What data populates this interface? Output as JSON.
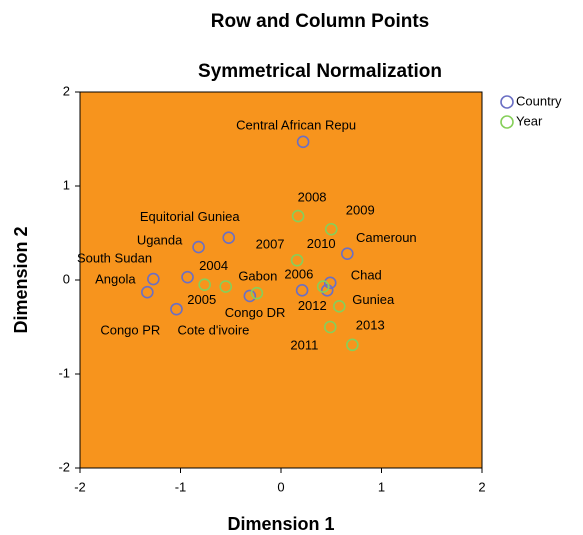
{
  "chart_data": {
    "type": "scatter",
    "title": "Row and Column Points",
    "subtitle": "Symmetrical Normalization",
    "x_label": "Dimension 1",
    "y_label": "Dimension 2",
    "xlim": [
      -2,
      2
    ],
    "xticks": [
      -2,
      -1,
      0,
      1,
      2
    ],
    "ylim": [
      -2,
      2
    ],
    "yticks": [
      -2,
      -1,
      0,
      1,
      2
    ],
    "background": "#f7941d",
    "legend": "right",
    "series": [
      {
        "name": "Country",
        "color": "#6b6fc4",
        "labels": [
          "Central African Repu",
          "Equitorial Guniea",
          "Uganda",
          "South Sudan",
          "Angola",
          "Congo PR",
          "Cote d'ivoire",
          "Gabon",
          "Congo DR",
          "Chad",
          "Cameroun",
          "Guniea"
        ],
        "x": [
          0.22,
          -0.52,
          -0.82,
          -0.93,
          -1.27,
          -1.33,
          -1.04,
          -0.31,
          0.21,
          0.49,
          0.66,
          0.46
        ],
        "y": [
          1.47,
          0.45,
          0.35,
          0.03,
          0.01,
          -0.13,
          -0.31,
          -0.17,
          -0.11,
          -0.03,
          0.28,
          -0.11
        ]
      },
      {
        "name": "Year",
        "color": "#86cf5a",
        "labels": [
          "2004",
          "2005",
          "2006",
          "2007",
          "2010",
          "2008",
          "2009",
          "2012",
          "2013",
          "2011"
        ],
        "x": [
          -0.76,
          -0.55,
          -0.24,
          0.16,
          0.42,
          0.17,
          0.5,
          0.58,
          0.49,
          0.71
        ],
        "y": [
          -0.05,
          -0.07,
          -0.14,
          0.21,
          -0.07,
          0.68,
          0.54,
          -0.28,
          -0.5,
          -0.69
        ]
      }
    ]
  }
}
